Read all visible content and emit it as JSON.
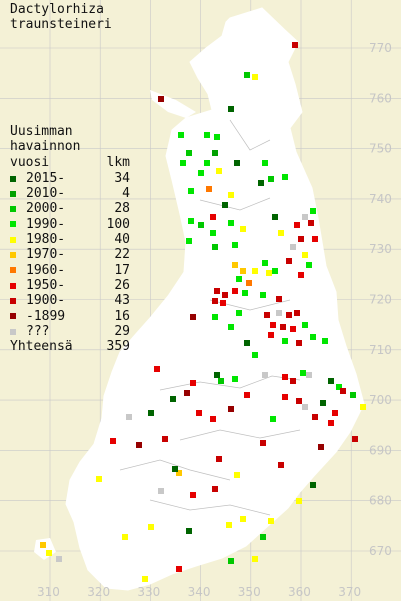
{
  "title": {
    "line1": "Dactylorhiza",
    "line2": "traunsteineri"
  },
  "legend": {
    "header_line1": "Uusimman",
    "header_line2": "havainnon",
    "header_line3": "vuosi",
    "header_count": "lkm",
    "items": [
      {
        "label": "2015-",
        "count": "34",
        "color": "#006400"
      },
      {
        "label": "2010-",
        "count": "4",
        "color": "#00a000"
      },
      {
        "label": "2000-",
        "count": "28",
        "color": "#00c800"
      },
      {
        "label": "1990-",
        "count": "100",
        "color": "#00e600"
      },
      {
        "label": "1980-",
        "count": "40",
        "color": "#ffff00"
      },
      {
        "label": "1970-",
        "count": "22",
        "color": "#ffc800"
      },
      {
        "label": "1960-",
        "count": "17",
        "color": "#ff7800"
      },
      {
        "label": "1950-",
        "count": "26",
        "color": "#e60000"
      },
      {
        "label": "1900-",
        "count": "43",
        "color": "#c80000"
      },
      {
        "label": "-1899",
        "count": "16",
        "color": "#960000"
      },
      {
        "label": "???",
        "count": "29",
        "color": "#c8c8c8"
      }
    ],
    "total_label": "Yhteensä",
    "total_count": "359"
  },
  "axes": {
    "y_ticks": [
      "770",
      "760",
      "750",
      "740",
      "730",
      "720",
      "710",
      "700",
      "690",
      "680",
      "670"
    ],
    "x_ticks": [
      "310",
      "320",
      "330",
      "340",
      "350",
      "360",
      "370"
    ]
  }
}
